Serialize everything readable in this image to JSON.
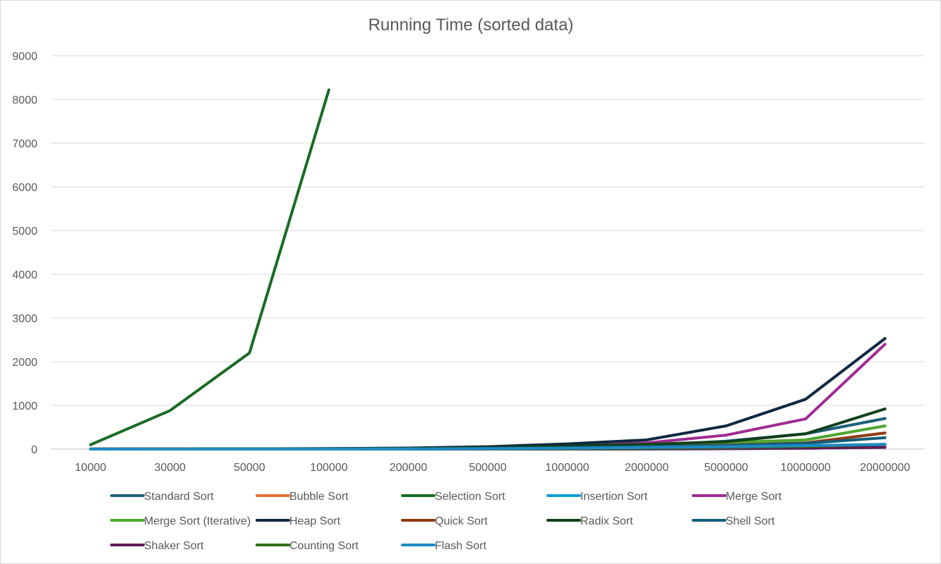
{
  "chart_data": {
    "type": "line",
    "title": "Running Time (sorted data)",
    "xlabel": "",
    "ylabel": "",
    "categories": [
      "10000",
      "30000",
      "50000",
      "100000",
      "200000",
      "500000",
      "1000000",
      "2000000",
      "5000000",
      "10000000",
      "20000000"
    ],
    "y_ticks": [
      "0",
      "1000",
      "2000",
      "3000",
      "4000",
      "5000",
      "6000",
      "7000",
      "8000",
      "9000"
    ],
    "ylim": [
      0,
      9000
    ],
    "grid": "horizontal",
    "legend_position": "bottom",
    "series": [
      {
        "name": "Standard Sort",
        "color": "#1f5f7a",
        "values": [
          0,
          1,
          2,
          4,
          8,
          20,
          40,
          80,
          180,
          350,
          700
        ]
      },
      {
        "name": "Bubble Sort",
        "color": "#e97132",
        "values": [
          0,
          0,
          0,
          0,
          0,
          1,
          2,
          4,
          10,
          20,
          40
        ]
      },
      {
        "name": "Selection Sort",
        "color": "#196b24",
        "values": [
          100,
          880,
          2200,
          8220,
          null,
          null,
          null,
          null,
          null,
          null,
          null
        ]
      },
      {
        "name": "Insertion Sort",
        "color": "#0f9ed5",
        "values": [
          0,
          0,
          0,
          0,
          0,
          1,
          2,
          4,
          10,
          20,
          40
        ]
      },
      {
        "name": "Merge Sort",
        "color": "#a02b93",
        "values": [
          1,
          3,
          5,
          10,
          20,
          45,
          95,
          140,
          320,
          690,
          2400
        ]
      },
      {
        "name": "Merge Sort (Iterative)",
        "color": "#4ea72e",
        "values": [
          1,
          2,
          4,
          8,
          15,
          35,
          70,
          110,
          150,
          210,
          530
        ]
      },
      {
        "name": "Heap Sort",
        "color": "#0e2841",
        "values": [
          1,
          3,
          6,
          12,
          25,
          55,
          120,
          210,
          530,
          1140,
          2530
        ]
      },
      {
        "name": "Quick Sort",
        "color": "#8f3a14",
        "values": [
          0,
          1,
          2,
          4,
          8,
          18,
          35,
          60,
          90,
          140,
          370
        ]
      },
      {
        "name": "Radix Sort",
        "color": "#10401a",
        "values": [
          1,
          2,
          4,
          8,
          15,
          35,
          70,
          110,
          170,
          350,
          920
        ]
      },
      {
        "name": "Shell Sort",
        "color": "#105f7a",
        "values": [
          0,
          1,
          2,
          3,
          6,
          15,
          30,
          55,
          80,
          130,
          260
        ]
      },
      {
        "name": "Shaker Sort",
        "color": "#5f1b58",
        "values": [
          0,
          0,
          0,
          0,
          0,
          1,
          2,
          4,
          10,
          20,
          40
        ]
      },
      {
        "name": "Counting Sort",
        "color": "#2f6e1c",
        "values": [
          0,
          0,
          0,
          1,
          2,
          5,
          10,
          20,
          35,
          60,
          110
        ]
      },
      {
        "name": "Flash Sort",
        "color": "#1e8bc3",
        "values": [
          0,
          1,
          1,
          2,
          4,
          10,
          20,
          35,
          55,
          80,
          110
        ]
      }
    ]
  }
}
